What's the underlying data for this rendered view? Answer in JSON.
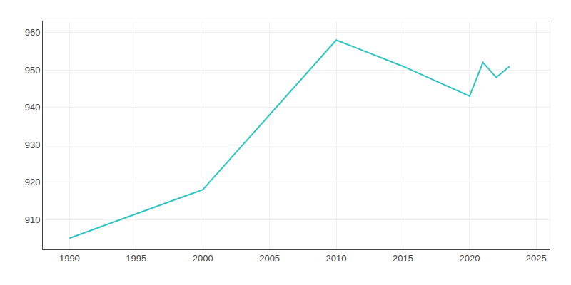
{
  "chart_data": {
    "type": "line",
    "x": [
      1990,
      2000,
      2010,
      2015,
      2020,
      2021,
      2022,
      2023
    ],
    "values": [
      905,
      918,
      958,
      951,
      943,
      952,
      948,
      951
    ],
    "color": "#2ec4c4",
    "xlim": [
      1988,
      2026
    ],
    "ylim": [
      902,
      963
    ],
    "xticks": [
      1990,
      1995,
      2000,
      2005,
      2010,
      2015,
      2020,
      2025
    ],
    "yticks": [
      910,
      920,
      930,
      940,
      950,
      960
    ],
    "grid": true
  }
}
